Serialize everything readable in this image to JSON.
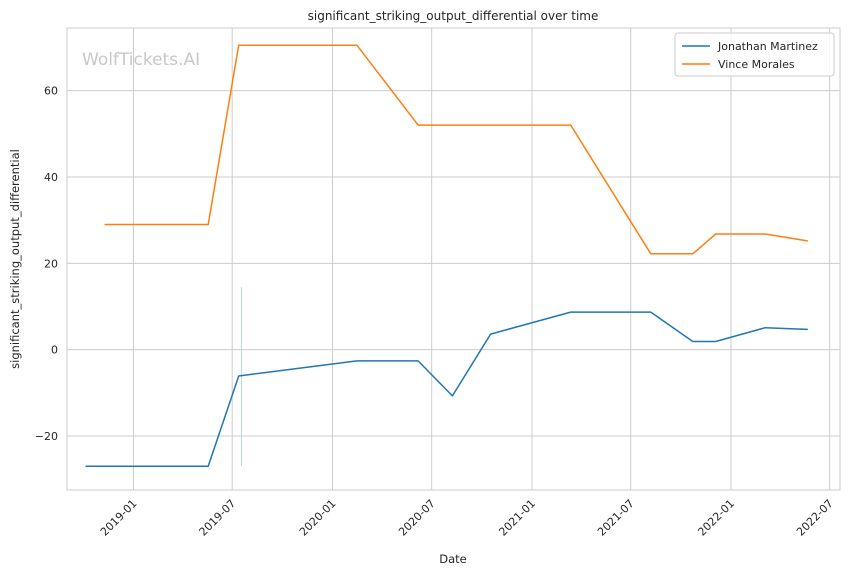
{
  "chart_data": {
    "type": "line",
    "title": "significant_striking_output_differential over time",
    "xlabel": "Date",
    "ylabel": "significant_striking_output_differential",
    "watermark": "WolfTickets.AI",
    "x_ticks": [
      "2019-01",
      "2019-07",
      "2020-01",
      "2020-07",
      "2021-01",
      "2021-07",
      "2022-01",
      "2022-07"
    ],
    "y_ticks": [
      -20,
      0,
      20,
      40,
      60
    ],
    "x_range": [
      "2018-09-01",
      "2022-07-20"
    ],
    "ylim": [
      -32.5,
      74.5
    ],
    "grid": true,
    "legend_position": "top-right",
    "series": [
      {
        "name": "Jonathan Martinez",
        "color": "#1f77b4",
        "points": [
          {
            "x": "2018-10-06",
            "y": -27
          },
          {
            "x": "2019-05-18",
            "y": -27
          },
          {
            "x": "2019-07-13",
            "y": -6.1
          },
          {
            "x": "2020-02-15",
            "y": -2.6
          },
          {
            "x": "2020-06-06",
            "y": -2.6
          },
          {
            "x": "2020-08-08",
            "y": -10.7
          },
          {
            "x": "2020-10-17",
            "y": 3.6
          },
          {
            "x": "2021-03-13",
            "y": 8.7
          },
          {
            "x": "2021-08-07",
            "y": 8.7
          },
          {
            "x": "2021-10-23",
            "y": 1.9
          },
          {
            "x": "2021-12-04",
            "y": 1.9
          },
          {
            "x": "2022-03-05",
            "y": 5.1
          },
          {
            "x": "2022-05-21",
            "y": 4.7
          }
        ]
      },
      {
        "name": "Vince Morales",
        "color": "#ff7f0e",
        "points": [
          {
            "x": "2018-11-10",
            "y": 29
          },
          {
            "x": "2019-05-18",
            "y": 29
          },
          {
            "x": "2019-07-13",
            "y": 70.5
          },
          {
            "x": "2020-02-15",
            "y": 70.5
          },
          {
            "x": "2020-06-06",
            "y": 52
          },
          {
            "x": "2021-03-13",
            "y": 52
          },
          {
            "x": "2021-08-07",
            "y": 22.2
          },
          {
            "x": "2021-10-23",
            "y": 22.2
          },
          {
            "x": "2021-12-04",
            "y": 26.8
          },
          {
            "x": "2022-03-05",
            "y": 26.8
          },
          {
            "x": "2022-05-21",
            "y": 25.2
          }
        ]
      }
    ],
    "annotations": [
      {
        "type": "vertical-band",
        "x": "2019-07-18",
        "y_range": [
          -27,
          14.5
        ],
        "color": "#add8e6"
      }
    ]
  }
}
